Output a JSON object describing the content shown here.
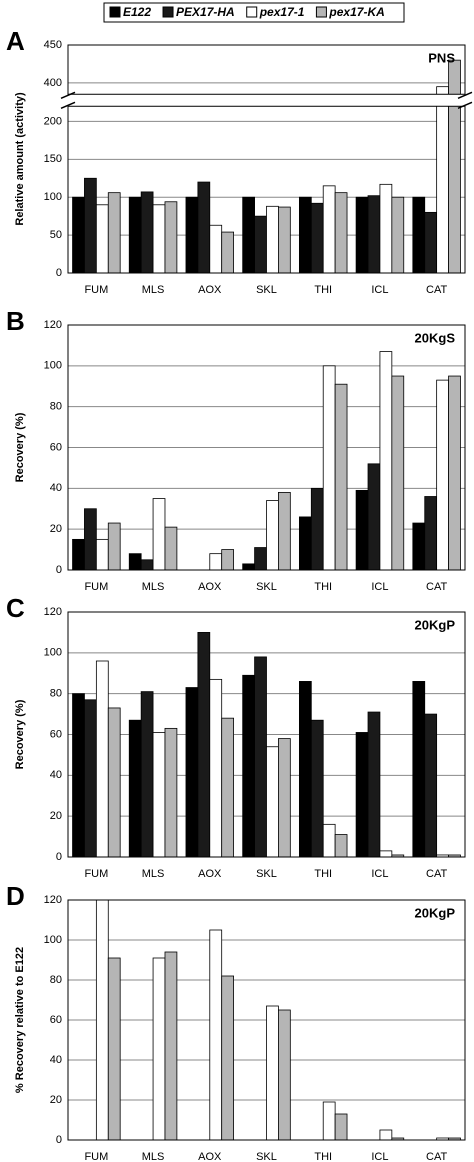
{
  "chart_data": [
    {
      "type": "bar",
      "panel": "A",
      "annotation": "PNS",
      "y_label": "Relative amount (activity)",
      "categories": [
        "FUM",
        "MLS",
        "AOX",
        "SKL",
        "THI",
        "ICL",
        "CAT"
      ],
      "series": [
        {
          "name": "E122",
          "color": "#000000",
          "values": [
            100,
            100,
            100,
            100,
            100,
            100,
            100
          ]
        },
        {
          "name": "PEX17-HA",
          "color": "#1a1a1a",
          "values": [
            125,
            107,
            120,
            75,
            92,
            102,
            80
          ]
        },
        {
          "name": "pex17-1",
          "color": "#ffffff",
          "values": [
            90,
            90,
            63,
            88,
            115,
            117,
            395
          ]
        },
        {
          "name": "pex17-KA",
          "color": "#b5b5b5",
          "values": [
            106,
            94,
            54,
            87,
            106,
            100,
            430
          ]
        }
      ],
      "ylim": [
        0,
        450
      ],
      "ylim_segments": [
        [
          0,
          220
        ],
        [
          385,
          450
        ]
      ],
      "yticks": [
        0,
        50,
        100,
        150,
        200,
        400,
        450
      ],
      "grid": true
    },
    {
      "type": "bar",
      "panel": "B",
      "annotation": "20KgS",
      "y_label": "Recovery (%)",
      "categories": [
        "FUM",
        "MLS",
        "AOX",
        "SKL",
        "THI",
        "ICL",
        "CAT"
      ],
      "series": [
        {
          "color": "#000000",
          "values": [
            15,
            8,
            0,
            3,
            26,
            39,
            23
          ]
        },
        {
          "color": "#1a1a1a",
          "values": [
            30,
            5,
            0,
            11,
            40,
            52,
            36
          ]
        },
        {
          "color": "#ffffff",
          "values": [
            15,
            35,
            8,
            34,
            100,
            107,
            93
          ]
        },
        {
          "color": "#b5b5b5",
          "values": [
            23,
            21,
            10,
            38,
            91,
            95,
            95
          ]
        }
      ],
      "ylim": [
        0,
        120
      ],
      "yticks": [
        0,
        20,
        40,
        60,
        80,
        100,
        120
      ],
      "grid": true
    },
    {
      "type": "bar",
      "panel": "C",
      "annotation": "20KgP",
      "y_label": "Recovery (%)",
      "categories": [
        "FUM",
        "MLS",
        "AOX",
        "SKL",
        "THI",
        "ICL",
        "CAT"
      ],
      "series": [
        {
          "color": "#000000",
          "values": [
            80,
            67,
            83,
            89,
            86,
            61,
            86
          ]
        },
        {
          "color": "#1a1a1a",
          "values": [
            77,
            81,
            110,
            98,
            67,
            71,
            70
          ]
        },
        {
          "color": "#ffffff",
          "values": [
            96,
            61,
            87,
            54,
            16,
            3,
            1
          ]
        },
        {
          "color": "#b5b5b5",
          "values": [
            73,
            63,
            68,
            58,
            11,
            1,
            1
          ]
        }
      ],
      "ylim": [
        0,
        120
      ],
      "yticks": [
        0,
        20,
        40,
        60,
        80,
        100,
        120
      ],
      "grid": true
    },
    {
      "type": "bar",
      "panel": "D",
      "annotation": "20KgP",
      "y_label": "% Recovery relative to E122",
      "categories": [
        "FUM",
        "MLS",
        "AOX",
        "SKL",
        "THI",
        "ICL",
        "CAT"
      ],
      "series": [
        {
          "color": "#ffffff",
          "values": [
            120,
            91,
            105,
            67,
            19,
            5,
            1
          ]
        },
        {
          "color": "#b5b5b5",
          "values": [
            91,
            94,
            82,
            65,
            13,
            1,
            1
          ]
        }
      ],
      "ylim": [
        0,
        120
      ],
      "yticks": [
        0,
        20,
        40,
        60,
        80,
        100,
        120
      ],
      "grid": true
    }
  ]
}
